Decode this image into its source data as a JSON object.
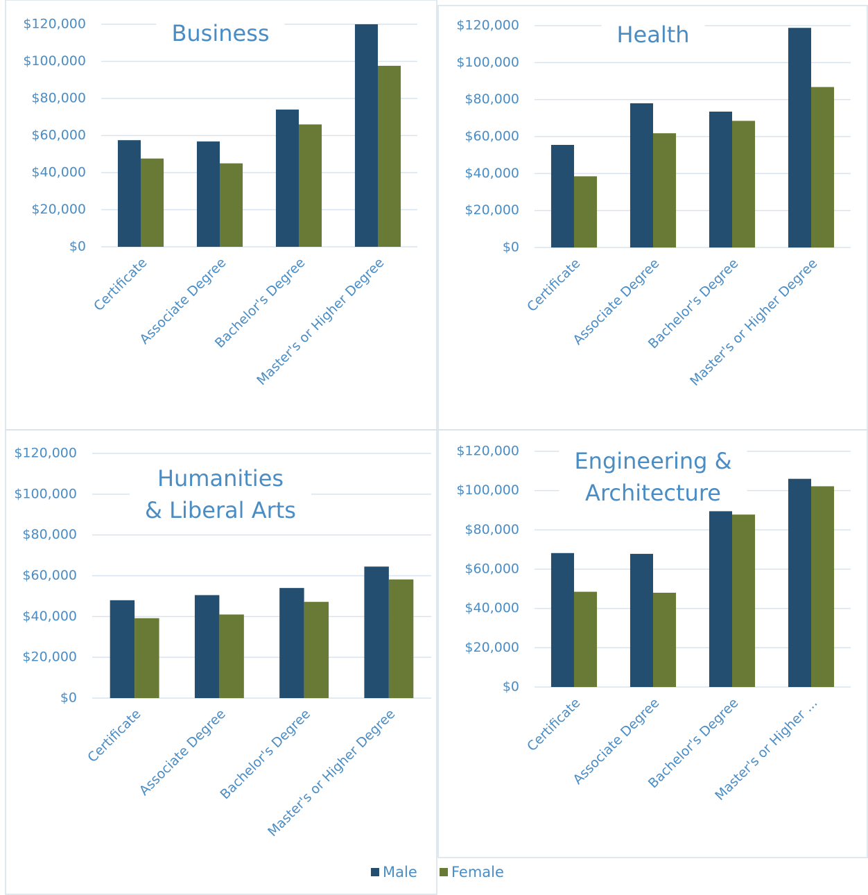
{
  "chart_data": [
    {
      "type": "bar",
      "title": "Business",
      "categories": [
        "Certificate",
        "Associate Degree",
        "Bachelor's Degree",
        "Master's or Higher Degree"
      ],
      "series": [
        {
          "values": [
            57500,
            56800,
            74000,
            120000
          ]
        },
        {
          "values": [
            47600,
            45000,
            66000,
            97600
          ]
        }
      ],
      "ylim": [
        0,
        120000
      ],
      "yticks": [
        {
          "value": 0,
          "label": "$0"
        },
        {
          "value": 20000,
          "label": "$20,000"
        },
        {
          "value": 40000,
          "label": "$40,000"
        },
        {
          "value": 60000,
          "label": "$60,000"
        },
        {
          "value": 80000,
          "label": "$80,000"
        },
        {
          "value": 100000,
          "label": "$100,000"
        },
        {
          "value": 120000,
          "label": "$120,000"
        }
      ],
      "grid": true
    },
    {
      "type": "bar",
      "title": "Health",
      "categories": [
        "Certificate",
        "Associate Degree",
        "Bachelor's Degree",
        "Master's or Higher Degree"
      ],
      "series": [
        {
          "values": [
            55500,
            78000,
            73500,
            118800
          ]
        },
        {
          "values": [
            38500,
            61800,
            68500,
            86800
          ]
        }
      ],
      "ylim": [
        0,
        120000
      ],
      "yticks": [
        {
          "value": 0,
          "label": "$0"
        },
        {
          "value": 20000,
          "label": "$20,000"
        },
        {
          "value": 40000,
          "label": "$40,000"
        },
        {
          "value": 60000,
          "label": "$60,000"
        },
        {
          "value": 80000,
          "label": "$80,000"
        },
        {
          "value": 100000,
          "label": "$100,000"
        },
        {
          "value": 120000,
          "label": "$120,000"
        }
      ],
      "grid": true
    },
    {
      "type": "bar",
      "title": [
        "Humanities",
        "& Liberal Arts"
      ],
      "categories": [
        "Certificate",
        "Associate Degree",
        "Bachelor's Degree",
        "Master's or Higher Degree"
      ],
      "series": [
        {
          "values": [
            48000,
            50500,
            54000,
            64500
          ]
        },
        {
          "values": [
            39200,
            41000,
            47200,
            58200
          ]
        }
      ],
      "ylim": [
        0,
        120000
      ],
      "yticks": [
        {
          "value": 0,
          "label": "$0"
        },
        {
          "value": 20000,
          "label": "$20,000"
        },
        {
          "value": 40000,
          "label": "$40,000"
        },
        {
          "value": 60000,
          "label": "$60,000"
        },
        {
          "value": 80000,
          "label": "$80,000"
        },
        {
          "value": 100000,
          "label": "$100,000"
        },
        {
          "value": 120000,
          "label": "$120,000"
        }
      ],
      "grid": true
    },
    {
      "type": "bar",
      "title": [
        "Engineering &",
        "Architecture"
      ],
      "categories": [
        "Certificate",
        "Associate Degree",
        "Bachelor's Degree",
        "Master's or Higher ..."
      ],
      "series": [
        {
          "values": [
            68200,
            67800,
            89500,
            106000
          ]
        },
        {
          "values": [
            48500,
            48000,
            87800,
            102200
          ]
        }
      ],
      "ylim": [
        0,
        120000
      ],
      "yticks": [
        {
          "value": 0,
          "label": "$0"
        },
        {
          "value": 20000,
          "label": "$20,000"
        },
        {
          "value": 40000,
          "label": "$40,000"
        },
        {
          "value": 60000,
          "label": "$60,000"
        },
        {
          "value": 80000,
          "label": "$80,000"
        },
        {
          "value": 100000,
          "label": "$100,000"
        },
        {
          "value": 120000,
          "label": "$120,000"
        }
      ],
      "grid": true
    }
  ],
  "legend": [
    {
      "name": "Male",
      "color": "#234e70"
    },
    {
      "name": "Female",
      "color": "#687a35"
    }
  ]
}
